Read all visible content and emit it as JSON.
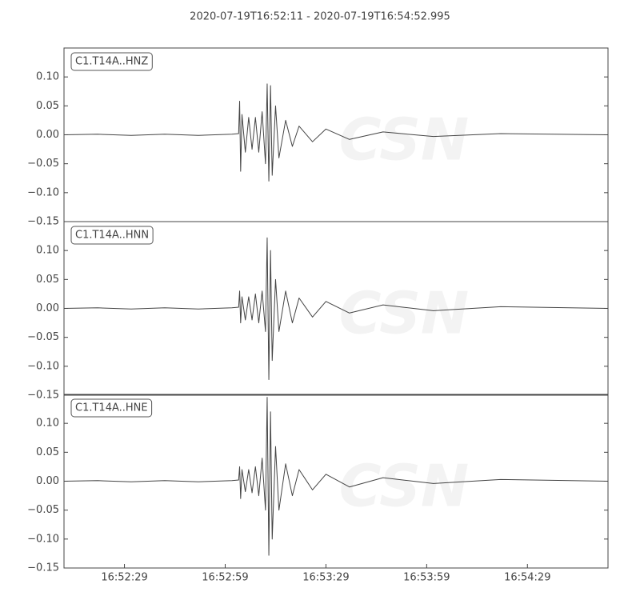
{
  "chart_data": [
    {
      "type": "line",
      "title": "2020-07-19T16:52:11  -  2020-07-19T16:54:52.995",
      "x": [
        0,
        10,
        20,
        30,
        40,
        50,
        52,
        52.3,
        52.6,
        53,
        54,
        55,
        56,
        57,
        58,
        59,
        60,
        60.5,
        61,
        61.5,
        62,
        63,
        64,
        66,
        68,
        70,
        74,
        78,
        85,
        95,
        110,
        130,
        162
      ],
      "series": [
        {
          "name": "C1.T14A..HNZ",
          "color": "#444444",
          "values": [
            0,
            0.001,
            -0.001,
            0.001,
            -0.001,
            0.001,
            0.002,
            0.058,
            -0.063,
            0.035,
            -0.03,
            0.03,
            -0.025,
            0.03,
            -0.03,
            0.04,
            -0.05,
            0.088,
            -0.08,
            0.085,
            -0.07,
            0.05,
            -0.04,
            0.025,
            -0.02,
            0.015,
            -0.012,
            0.01,
            -0.008,
            0.005,
            -0.003,
            0.002,
            0
          ]
        }
      ],
      "xlim": [
        0,
        161.995
      ],
      "ylim": [
        -0.15,
        0.15
      ],
      "yticks": [
        {
          "value": -0.15,
          "label": "−0.15"
        },
        {
          "value": -0.1,
          "label": "−0.10"
        },
        {
          "value": -0.05,
          "label": "−0.05"
        },
        {
          "value": 0,
          "label": "0.00"
        },
        {
          "value": 0.05,
          "label": "0.05"
        },
        {
          "value": 0.1,
          "label": "0.10"
        }
      ]
    },
    {
      "type": "line",
      "x": [
        0,
        10,
        20,
        30,
        40,
        50,
        52,
        52.3,
        52.6,
        53,
        54,
        55,
        56,
        57,
        58,
        59,
        60,
        60.5,
        61,
        61.5,
        62,
        63,
        64,
        66,
        68,
        70,
        74,
        78,
        85,
        95,
        110,
        130,
        162
      ],
      "series": [
        {
          "name": "C1.T14A..HNN",
          "color": "#444444",
          "values": [
            0,
            0.001,
            -0.001,
            0.001,
            -0.001,
            0.001,
            0.002,
            0.03,
            -0.025,
            0.02,
            -0.02,
            0.02,
            -0.02,
            0.025,
            -0.025,
            0.03,
            -0.04,
            0.122,
            -0.123,
            0.1,
            -0.09,
            0.05,
            -0.04,
            0.03,
            -0.025,
            0.018,
            -0.015,
            0.012,
            -0.008,
            0.006,
            -0.004,
            0.003,
            0
          ]
        }
      ],
      "xlim": [
        0,
        161.995
      ],
      "ylim": [
        -0.15,
        0.15
      ],
      "yticks": [
        {
          "value": -0.15,
          "label": "−0.15"
        },
        {
          "value": -0.1,
          "label": "−0.10"
        },
        {
          "value": -0.05,
          "label": "−0.05"
        },
        {
          "value": 0,
          "label": "0.00"
        },
        {
          "value": 0.05,
          "label": "0.05"
        },
        {
          "value": 0.1,
          "label": "0.10"
        }
      ]
    },
    {
      "type": "line",
      "x": [
        0,
        10,
        20,
        30,
        40,
        50,
        52,
        52.3,
        52.6,
        53,
        54,
        55,
        56,
        57,
        58,
        59,
        60,
        60.5,
        61,
        61.5,
        62,
        63,
        64,
        66,
        68,
        70,
        74,
        78,
        85,
        95,
        110,
        130,
        162
      ],
      "series": [
        {
          "name": "C1.T14A..HNE",
          "color": "#444444",
          "values": [
            0,
            0.001,
            -0.001,
            0.001,
            -0.001,
            0.001,
            0.002,
            0.025,
            -0.03,
            0.02,
            -0.018,
            0.02,
            -0.02,
            0.025,
            -0.025,
            0.04,
            -0.05,
            0.145,
            -0.128,
            0.12,
            -0.1,
            0.06,
            -0.05,
            0.03,
            -0.025,
            0.02,
            -0.015,
            0.012,
            -0.01,
            0.006,
            -0.004,
            0.003,
            0
          ]
        }
      ],
      "xlim": [
        0,
        161.995
      ],
      "ylim": [
        -0.15,
        0.15
      ],
      "yticks": [
        {
          "value": -0.15,
          "label": "−0.15"
        },
        {
          "value": -0.1,
          "label": "−0.10"
        },
        {
          "value": -0.05,
          "label": "−0.05"
        },
        {
          "value": 0,
          "label": "0.00"
        },
        {
          "value": 0.05,
          "label": "0.05"
        },
        {
          "value": 0.1,
          "label": "0.10"
        }
      ],
      "xticks": [
        {
          "value": 18,
          "label": "16:52:29"
        },
        {
          "value": 48,
          "label": "16:52:59"
        },
        {
          "value": 78,
          "label": "16:53:29"
        },
        {
          "value": 108,
          "label": "16:53:59"
        },
        {
          "value": 138,
          "label": "16:54:29"
        }
      ]
    }
  ],
  "watermark": "CSN"
}
